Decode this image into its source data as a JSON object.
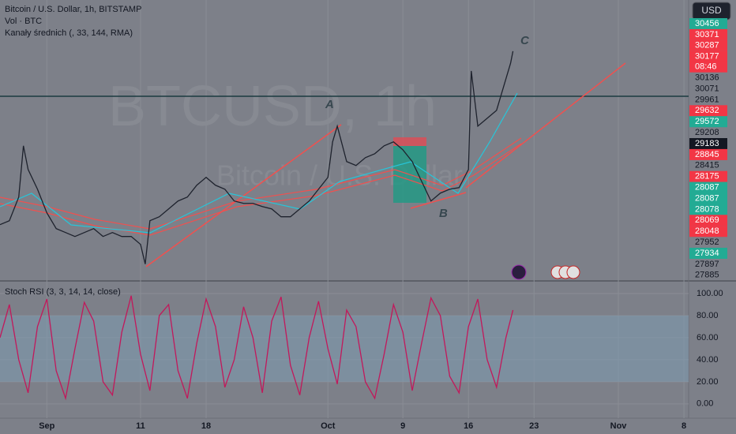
{
  "chart_data": [
    {
      "type": "line",
      "title": "Bitcoin / U.S. Dollar, 1h, BITSTAMP",
      "subtitles": [
        "Vol · BTC",
        "Kanały średnich (, 33, 144, RMA)"
      ],
      "currency": "USD",
      "watermark": [
        "BTCUSD, 1h",
        "Bitcoin / U.S. Dollar"
      ],
      "annotations": [
        "A",
        "B",
        "C"
      ],
      "countdown": "08:46",
      "x": [
        -5,
        -4,
        -3,
        -2.5,
        -2,
        -1,
        0,
        1,
        2,
        3,
        4,
        5,
        6,
        7,
        8,
        9,
        10,
        10.5,
        11,
        12,
        13,
        14,
        15,
        16,
        17,
        18,
        19,
        20,
        21,
        22,
        23,
        24,
        25,
        26,
        27,
        28,
        29,
        30,
        30.5,
        31,
        32,
        33,
        34,
        35,
        36,
        37,
        38,
        39,
        40,
        41,
        42,
        43,
        44,
        45,
        45.3,
        46,
        47,
        48,
        49,
        49.5,
        49.75
      ],
      "series": [
        {
          "name": "BTCUSD",
          "color": "#1e222d",
          "values": [
            28408,
            28448,
            28688,
            29208,
            28968,
            28768,
            28528,
            28368,
            28328,
            28288,
            28328,
            28368,
            28288,
            28328,
            28288,
            28288,
            28208,
            28008,
            28448,
            28488,
            28568,
            28648,
            28688,
            28808,
            28888,
            28808,
            28768,
            28648,
            28624,
            28624,
            28592,
            28568,
            28488,
            28488,
            28568,
            28648,
            28768,
            28888,
            29248,
            29408,
            29048,
            29008,
            29088,
            29128,
            29208,
            29248,
            29168,
            29048,
            28848,
            28648,
            28728,
            28768,
            28784,
            28968,
            29968,
            29408,
            29488,
            29568,
            29888,
            30048,
            30168
          ]
        }
      ],
      "xlim": [
        -5,
        68.5
      ],
      "xticks": [
        {
          "value": 0,
          "label": "Sep"
        },
        {
          "value": 10,
          "label": "11"
        },
        {
          "value": 17,
          "label": "18"
        },
        {
          "value": 30,
          "label": "Oct"
        },
        {
          "value": 38,
          "label": "9"
        },
        {
          "value": 45,
          "label": "16"
        },
        {
          "value": 52,
          "label": "23"
        },
        {
          "value": 61,
          "label": "Nov"
        },
        {
          "value": 68,
          "label": "8"
        }
      ],
      "ylim": [
        27845,
        30688
      ],
      "price_tags": [
        {
          "value": 30456,
          "color": "#22ab94"
        },
        {
          "value": 30371,
          "color": "#f23645"
        },
        {
          "value": 30287,
          "color": "#f23645"
        },
        {
          "value": 30177,
          "color": "#f23645"
        },
        {
          "value": 30136,
          "color": "none"
        },
        {
          "value": 30071,
          "color": "none"
        },
        {
          "value": 29961,
          "color": "none"
        },
        {
          "value": 29632,
          "color": "#f23645"
        },
        {
          "value": 29572,
          "color": "#22ab94"
        },
        {
          "value": 29208,
          "color": "none"
        },
        {
          "value": 29183,
          "color": "#131722"
        },
        {
          "value": 28845,
          "color": "#f23645"
        },
        {
          "value": 28415,
          "color": "none"
        },
        {
          "value": 28175,
          "color": "#f23645"
        },
        {
          "value": 28087,
          "color": "#22ab94"
        },
        {
          "value": 28087,
          "color": "#22ab94"
        },
        {
          "value": 28078,
          "color": "#22ab94"
        },
        {
          "value": 28069,
          "color": "#f23645"
        },
        {
          "value": 28048,
          "color": "#f23645"
        },
        {
          "value": 27952,
          "color": "none"
        },
        {
          "value": 27934,
          "color": "#22ab94"
        },
        {
          "value": 27897,
          "color": "none"
        },
        {
          "value": 27885,
          "color": "none"
        }
      ]
    },
    {
      "type": "line",
      "title": "Stoch RSI (3, 3, 14, 14, close)",
      "x": [
        -5,
        -4,
        -3,
        -2,
        -1,
        0,
        1,
        2,
        3,
        4,
        5,
        6,
        7,
        8,
        9,
        10,
        11,
        12,
        13,
        14,
        15,
        16,
        17,
        18,
        19,
        20,
        21,
        22,
        23,
        24,
        25,
        26,
        27,
        28,
        29,
        30,
        31,
        32,
        33,
        34,
        35,
        36,
        37,
        38,
        39,
        40,
        41,
        42,
        43,
        44,
        45,
        46,
        47,
        48,
        49,
        49.75
      ],
      "series": [
        {
          "name": "Stoch RSI",
          "color": "#c2185b",
          "values": [
            60,
            90,
            40,
            10,
            70,
            95,
            30,
            5,
            50,
            92,
            75,
            20,
            8,
            65,
            98,
            45,
            12,
            80,
            90,
            30,
            5,
            55,
            95,
            70,
            15,
            40,
            88,
            60,
            10,
            75,
            97,
            35,
            8,
            60,
            93,
            50,
            18,
            85,
            70,
            20,
            5,
            45,
            90,
            65,
            12,
            55,
            96,
            80,
            25,
            10,
            70,
            95,
            40,
            15,
            60,
            85
          ]
        }
      ],
      "xlim": [
        -5,
        68.5
      ],
      "ylim": [
        -13,
        110
      ],
      "yticks": [
        {
          "value": 100,
          "label": "100.00"
        },
        {
          "value": 80,
          "label": "80.00"
        },
        {
          "value": 60,
          "label": "60.00"
        },
        {
          "value": 40,
          "label": "40.00"
        },
        {
          "value": 20,
          "label": "20.00"
        },
        {
          "value": 0,
          "label": "0.00"
        }
      ],
      "band": [
        20,
        80
      ]
    }
  ]
}
